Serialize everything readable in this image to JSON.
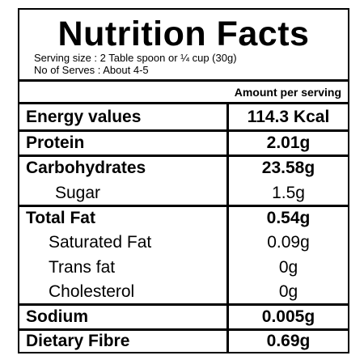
{
  "header": {
    "title": "Nutrition Facts",
    "serving_size": "Serving size : 2 Table spoon or ¼ cup (30g)",
    "serves": "No of Serves : About 4-5"
  },
  "table": {
    "column_header": "Amount per serving",
    "rows": [
      [
        "Energy values",
        "114.3 Kcal"
      ],
      [
        "Protein",
        "2.01g"
      ],
      [
        "Carbohydrates",
        "23.58g"
      ],
      [
        "Sugar",
        "1.5g"
      ],
      [
        "Total Fat",
        "0.54g"
      ],
      [
        "Saturated Fat",
        "0.09g"
      ],
      [
        "Trans fat",
        "0g"
      ],
      [
        "Cholesterol",
        "0g"
      ],
      [
        "Sodium",
        "0.005g"
      ],
      [
        "Dietary Fibre",
        "0.69g"
      ]
    ]
  }
}
